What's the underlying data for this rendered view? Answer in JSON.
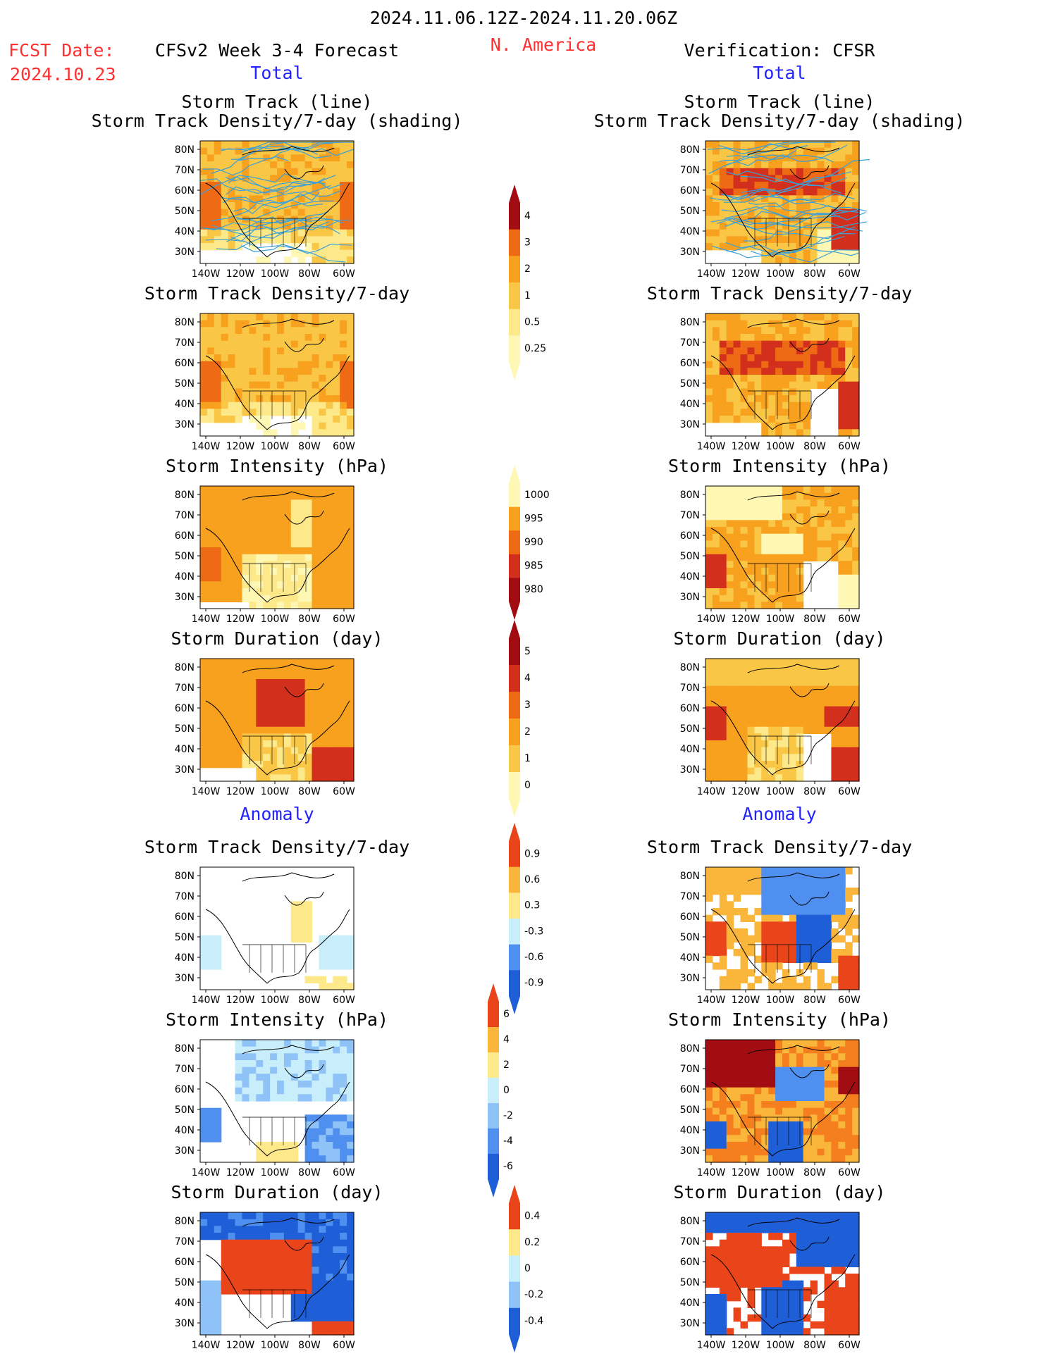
{
  "header": {
    "period": "2024.11.06.12Z-2024.11.20.06Z",
    "region": "N. America",
    "fcst_label": "FCST Date:",
    "fcst_date": "2024.10.23",
    "left_title": "CFSv2 Week 3-4 Forecast",
    "right_title": "Verification: CFSR"
  },
  "sections": {
    "total": "Total",
    "anomaly": "Anomaly"
  },
  "panel_titles": {
    "track_line": "Storm Track (line)",
    "track_shading": "Storm Track Density/7-day (shading)",
    "density": "Storm Track Density/7-day",
    "intensity": "Storm Intensity (hPa)",
    "duration": "Storm Duration (day)"
  },
  "axes": {
    "lat_ticks": [
      "80N",
      "70N",
      "60N",
      "50N",
      "40N",
      "30N"
    ],
    "lon_ticks": [
      "140W",
      "120W",
      "100W",
      "80W",
      "60W"
    ]
  },
  "colorbars": {
    "density_total": [
      "0.25",
      "0.5",
      "1",
      "2",
      "3",
      "4"
    ],
    "intensity_total": [
      "980",
      "985",
      "990",
      "995",
      "1000"
    ],
    "duration_total": [
      "0",
      "1",
      "2",
      "3",
      "4",
      "5"
    ],
    "density_anom": [
      "-0.9",
      "-0.6",
      "-0.3",
      "0.3",
      "0.6",
      "0.9"
    ],
    "intensity_anom": [
      "-6",
      "-4",
      "-2",
      "0",
      "2",
      "4",
      "6"
    ],
    "duration_anom": [
      "-0.4",
      "-0.2",
      "0",
      "0.2",
      "0.4"
    ]
  },
  "colors": {
    "title_red": "#ff3030",
    "label_blue": "#2222ff",
    "warm": [
      "#fff8b4",
      "#fde88a",
      "#f9c646",
      "#f7a11f",
      "#ef6a14",
      "#d2301c",
      "#a10d12"
    ],
    "anom": [
      "#1e5fd8",
      "#4f8fef",
      "#8fc3f7",
      "#c9eefb",
      "#ffffff",
      "#fde88a",
      "#f9b63a",
      "#f57f1e",
      "#e9441a",
      "#a10d12"
    ],
    "track_line": "#3aa0d8"
  }
}
